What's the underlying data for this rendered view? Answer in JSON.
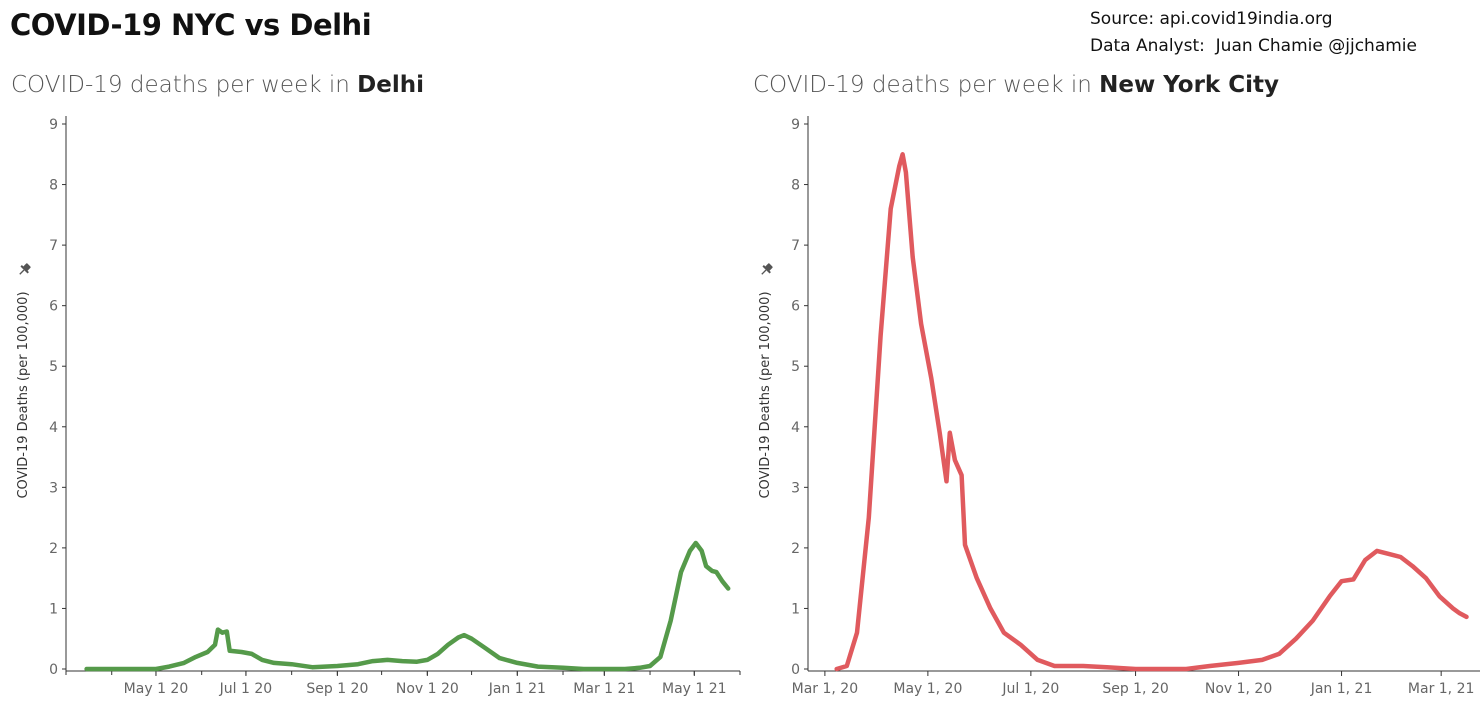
{
  "header": {
    "title": "COVID-19 NYC vs Delhi",
    "source_line": "Source: api.covid19india.org",
    "analyst_line": "Data Analyst:  Juan Chamie @jjchamie"
  },
  "panels": [
    {
      "title_prefix": "COVID-19 deaths per week in ",
      "title_place": "Delhi"
    },
    {
      "title_prefix": "COVID-19 deaths per week in ",
      "title_place": "New York City"
    }
  ],
  "colors": {
    "delhi": "#559a4a",
    "nyc": "#e05a5e",
    "axis": "#333333",
    "tick_label": "#666666"
  },
  "icons": {
    "pin": "pin-icon"
  },
  "chart_data": [
    {
      "type": "line",
      "title": "COVID-19 deaths per week in Delhi",
      "ylabel": "COVID-19 Deaths (per 100,000)",
      "xlabel": "",
      "ylim": [
        0,
        9
      ],
      "yticks": [
        0,
        1,
        2,
        3,
        4,
        5,
        6,
        7,
        8,
        9
      ],
      "xticks": [
        {
          "date": "2020-05-01",
          "label": "May 1 20"
        },
        {
          "date": "2020-07-01",
          "label": "Jul 1 20"
        },
        {
          "date": "2020-09-01",
          "label": "Sep 1 20"
        },
        {
          "date": "2020-11-01",
          "label": "Nov 1 20"
        },
        {
          "date": "2021-01-01",
          "label": "Jan 1 21"
        },
        {
          "date": "2021-03-01",
          "label": "Mar 1 21"
        },
        {
          "date": "2021-05-01",
          "label": "May 1 21"
        }
      ],
      "xlim": [
        "2020-03-01",
        "2021-06-01"
      ],
      "grid": false,
      "series": [
        {
          "points": [
            [
              "2020-03-15",
              0
            ],
            [
              "2020-04-01",
              0
            ],
            [
              "2020-04-20",
              0
            ],
            [
              "2020-05-01",
              0
            ],
            [
              "2020-05-10",
              0.04
            ],
            [
              "2020-05-20",
              0.1
            ],
            [
              "2020-05-28",
              0.2
            ],
            [
              "2020-06-05",
              0.28
            ],
            [
              "2020-06-10",
              0.4
            ],
            [
              "2020-06-12",
              0.65
            ],
            [
              "2020-06-15",
              0.6
            ],
            [
              "2020-06-18",
              0.62
            ],
            [
              "2020-06-20",
              0.3
            ],
            [
              "2020-06-28",
              0.28
            ],
            [
              "2020-07-05",
              0.25
            ],
            [
              "2020-07-12",
              0.15
            ],
            [
              "2020-07-20",
              0.1
            ],
            [
              "2020-08-01",
              0.08
            ],
            [
              "2020-08-15",
              0.03
            ],
            [
              "2020-09-01",
              0.05
            ],
            [
              "2020-09-15",
              0.08
            ],
            [
              "2020-09-25",
              0.13
            ],
            [
              "2020-10-05",
              0.15
            ],
            [
              "2020-10-15",
              0.13
            ],
            [
              "2020-10-25",
              0.12
            ],
            [
              "2020-11-01",
              0.15
            ],
            [
              "2020-11-08",
              0.25
            ],
            [
              "2020-11-15",
              0.4
            ],
            [
              "2020-11-22",
              0.52
            ],
            [
              "2020-11-26",
              0.56
            ],
            [
              "2020-12-01",
              0.5
            ],
            [
              "2020-12-10",
              0.35
            ],
            [
              "2020-12-20",
              0.18
            ],
            [
              "2021-01-01",
              0.1
            ],
            [
              "2021-01-15",
              0.04
            ],
            [
              "2021-02-01",
              0.02
            ],
            [
              "2021-02-15",
              0
            ],
            [
              "2021-03-01",
              0
            ],
            [
              "2021-03-15",
              0
            ],
            [
              "2021-03-25",
              0.02
            ],
            [
              "2021-04-01",
              0.05
            ],
            [
              "2021-04-08",
              0.2
            ],
            [
              "2021-04-15",
              0.8
            ],
            [
              "2021-04-22",
              1.6
            ],
            [
              "2021-04-28",
              1.95
            ],
            [
              "2021-05-02",
              2.08
            ],
            [
              "2021-05-06",
              1.95
            ],
            [
              "2021-05-09",
              1.7
            ],
            [
              "2021-05-13",
              1.62
            ],
            [
              "2021-05-16",
              1.6
            ],
            [
              "2021-05-20",
              1.45
            ],
            [
              "2021-05-24",
              1.33
            ]
          ]
        }
      ]
    },
    {
      "type": "line",
      "title": "COVID-19 deaths per week in New York City",
      "ylabel": "COVID-19 Deaths (per 100,000)",
      "xlabel": "",
      "ylim": [
        0,
        9
      ],
      "yticks": [
        0,
        1,
        2,
        3,
        4,
        5,
        6,
        7,
        8,
        9
      ],
      "xticks": [
        {
          "date": "2020-03-01",
          "label": "Mar 1, 20"
        },
        {
          "date": "2020-05-01",
          "label": "May 1, 20"
        },
        {
          "date": "2020-07-01",
          "label": "Jul 1, 20"
        },
        {
          "date": "2020-09-01",
          "label": "Sep 1, 20"
        },
        {
          "date": "2020-11-01",
          "label": "Nov 1, 20"
        },
        {
          "date": "2021-01-01",
          "label": "Jan 1, 21"
        },
        {
          "date": "2021-03-01",
          "label": "Mar 1, 21"
        }
      ],
      "xlim": [
        "2020-02-20",
        "2021-03-24"
      ],
      "grid": false,
      "series": [
        {
          "points": [
            [
              "2020-03-08",
              0
            ],
            [
              "2020-03-14",
              0.05
            ],
            [
              "2020-03-20",
              0.6
            ],
            [
              "2020-03-27",
              2.5
            ],
            [
              "2020-04-03",
              5.5
            ],
            [
              "2020-04-09",
              7.6
            ],
            [
              "2020-04-14",
              8.3
            ],
            [
              "2020-04-16",
              8.5
            ],
            [
              "2020-04-18",
              8.2
            ],
            [
              "2020-04-22",
              6.8
            ],
            [
              "2020-04-27",
              5.7
            ],
            [
              "2020-05-03",
              4.8
            ],
            [
              "2020-05-08",
              3.9
            ],
            [
              "2020-05-12",
              3.1
            ],
            [
              "2020-05-14",
              3.9
            ],
            [
              "2020-05-17",
              3.45
            ],
            [
              "2020-05-21",
              3.2
            ],
            [
              "2020-05-23",
              2.05
            ],
            [
              "2020-05-30",
              1.5
            ],
            [
              "2020-06-07",
              1.0
            ],
            [
              "2020-06-15",
              0.6
            ],
            [
              "2020-06-25",
              0.4
            ],
            [
              "2020-07-05",
              0.15
            ],
            [
              "2020-07-15",
              0.05
            ],
            [
              "2020-08-01",
              0.05
            ],
            [
              "2020-08-15",
              0.03
            ],
            [
              "2020-09-01",
              0.0
            ],
            [
              "2020-09-15",
              0.0
            ],
            [
              "2020-10-01",
              0.0
            ],
            [
              "2020-10-15",
              0.05
            ],
            [
              "2020-11-01",
              0.1
            ],
            [
              "2020-11-15",
              0.15
            ],
            [
              "2020-11-25",
              0.25
            ],
            [
              "2020-12-05",
              0.5
            ],
            [
              "2020-12-15",
              0.8
            ],
            [
              "2020-12-25",
              1.2
            ],
            [
              "2021-01-01",
              1.45
            ],
            [
              "2021-01-08",
              1.48
            ],
            [
              "2021-01-15",
              1.8
            ],
            [
              "2021-01-22",
              1.95
            ],
            [
              "2021-01-29",
              1.9
            ],
            [
              "2021-02-05",
              1.85
            ],
            [
              "2021-02-12",
              1.7
            ],
            [
              "2021-02-20",
              1.5
            ],
            [
              "2021-02-28",
              1.2
            ],
            [
              "2021-03-08",
              1.0
            ],
            [
              "2021-03-12",
              0.92
            ],
            [
              "2021-03-16",
              0.86
            ]
          ]
        }
      ]
    }
  ]
}
